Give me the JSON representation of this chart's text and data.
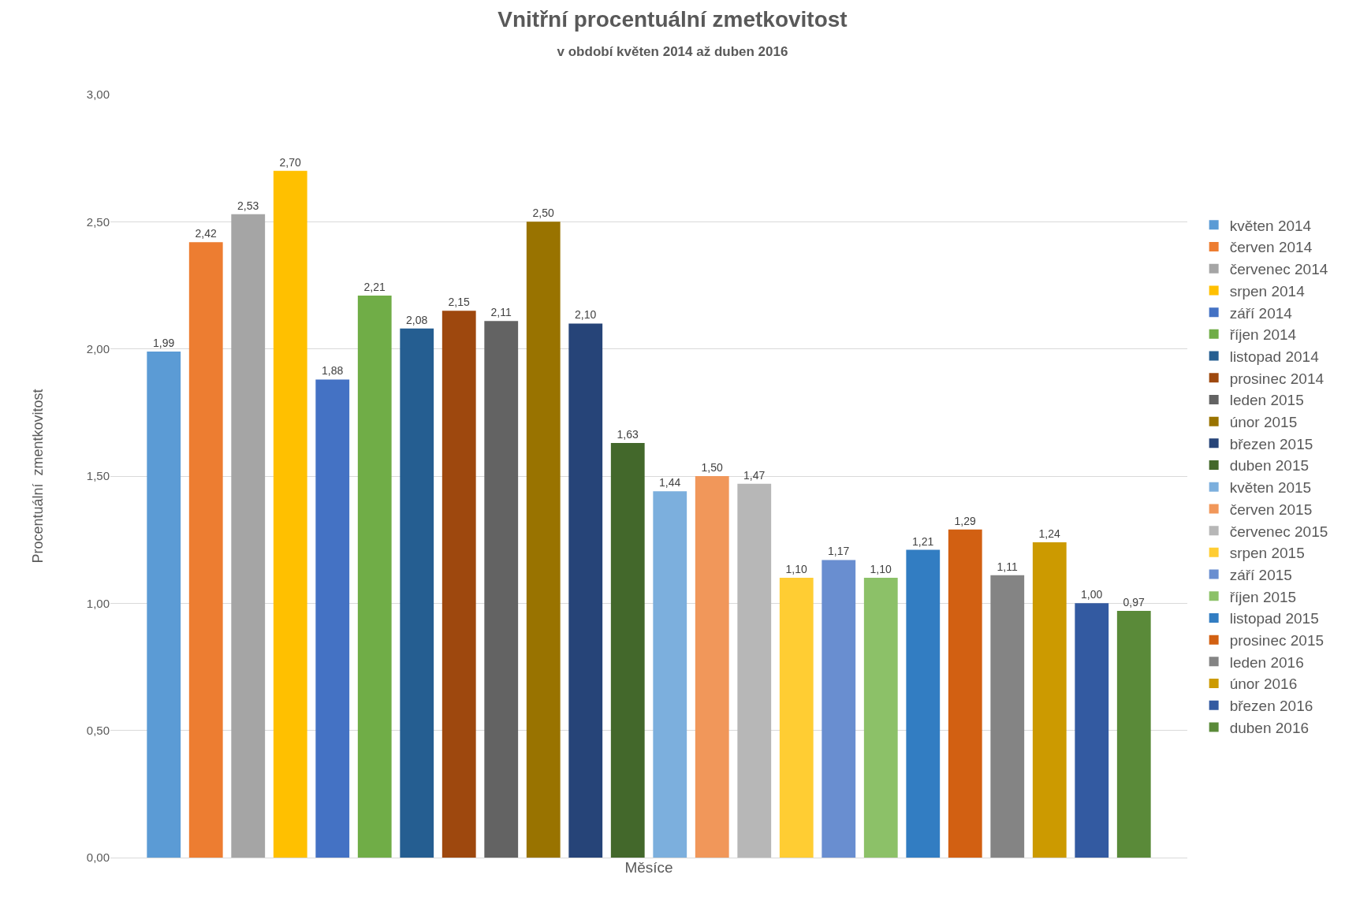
{
  "chart_data": {
    "type": "bar",
    "title": "Vnitřní procentuální zmetkovitost",
    "subtitle": "v období květen 2014 až duben 2016",
    "xlabel": "Měsíce",
    "ylabel": "Procentuální  zmentkovitost",
    "categories": [
      null
    ],
    "ylim": [
      0,
      3
    ],
    "yticks": [
      {
        "value": 0,
        "label": "0,00"
      },
      {
        "value": 0.5,
        "label": "0,50"
      },
      {
        "value": 1,
        "label": "1,00"
      },
      {
        "value": 1.5,
        "label": "1,50"
      },
      {
        "value": 2,
        "label": "2,00"
      },
      {
        "value": 2.5,
        "label": "2,50"
      },
      {
        "value": 3,
        "label": "3,00"
      }
    ],
    "grid": "y",
    "legend": "right",
    "tick_labels": "y",
    "series": [
      {
        "name": "květen 2014",
        "color": "#5b9bd5",
        "values": [
          1.99
        ],
        "value_labels": [
          "1,99"
        ]
      },
      {
        "name": "červen 2014",
        "color": "#ed7d31",
        "values": [
          2.42
        ],
        "value_labels": [
          "2,42"
        ]
      },
      {
        "name": "červenec 2014",
        "color": "#a5a5a5",
        "values": [
          2.53
        ],
        "value_labels": [
          "2,53"
        ]
      },
      {
        "name": "srpen 2014",
        "color": "#ffc000",
        "values": [
          2.7
        ],
        "value_labels": [
          "2,70"
        ]
      },
      {
        "name": "září 2014",
        "color": "#4472c4",
        "values": [
          1.88
        ],
        "value_labels": [
          "1,88"
        ]
      },
      {
        "name": "říjen 2014",
        "color": "#70ad47",
        "values": [
          2.21
        ],
        "value_labels": [
          "2,21"
        ]
      },
      {
        "name": "listopad 2014",
        "color": "#255e91",
        "values": [
          2.08
        ],
        "value_labels": [
          "2,08"
        ]
      },
      {
        "name": "prosinec 2014",
        "color": "#9e480e",
        "values": [
          2.15
        ],
        "value_labels": [
          "2,15"
        ]
      },
      {
        "name": "leden 2015",
        "color": "#636363",
        "values": [
          2.11
        ],
        "value_labels": [
          "2,11"
        ]
      },
      {
        "name": "únor 2015",
        "color": "#997300",
        "values": [
          2.5
        ],
        "value_labels": [
          "2,50"
        ]
      },
      {
        "name": "březen 2015",
        "color": "#264478",
        "values": [
          2.1
        ],
        "value_labels": [
          "2,10"
        ]
      },
      {
        "name": "duben 2015",
        "color": "#43682b",
        "values": [
          1.63
        ],
        "value_labels": [
          "1,63"
        ]
      },
      {
        "name": "květen 2015",
        "color": "#7cafdd",
        "values": [
          1.44
        ],
        "value_labels": [
          "1,44"
        ]
      },
      {
        "name": "červen 2015",
        "color": "#f1975a",
        "values": [
          1.5
        ],
        "value_labels": [
          "1,50"
        ]
      },
      {
        "name": "červenec 2015",
        "color": "#b7b7b7",
        "values": [
          1.47
        ],
        "value_labels": [
          "1,47"
        ]
      },
      {
        "name": "srpen 2015",
        "color": "#ffcd33",
        "values": [
          1.1
        ],
        "value_labels": [
          "1,10"
        ]
      },
      {
        "name": "září 2015",
        "color": "#698ed0",
        "values": [
          1.17
        ],
        "value_labels": [
          "1,17"
        ]
      },
      {
        "name": "říjen 2015",
        "color": "#8cc168",
        "values": [
          1.1
        ],
        "value_labels": [
          "1,10"
        ]
      },
      {
        "name": "listopad 2015",
        "color": "#327dc2",
        "values": [
          1.21
        ],
        "value_labels": [
          "1,21"
        ]
      },
      {
        "name": "prosinec 2015",
        "color": "#d26012",
        "values": [
          1.29
        ],
        "value_labels": [
          "1,29"
        ]
      },
      {
        "name": "leden 2016",
        "color": "#848484",
        "values": [
          1.11
        ],
        "value_labels": [
          "1,11"
        ]
      },
      {
        "name": "únor 2016",
        "color": "#cc9a00",
        "values": [
          1.24
        ],
        "value_labels": [
          "1,24"
        ]
      },
      {
        "name": "březen 2016",
        "color": "#335aa1",
        "values": [
          1.0
        ],
        "value_labels": [
          "1,00"
        ]
      },
      {
        "name": "duben 2016",
        "color": "#5a8a39",
        "values": [
          0.97
        ],
        "value_labels": [
          "0,97"
        ]
      }
    ]
  }
}
